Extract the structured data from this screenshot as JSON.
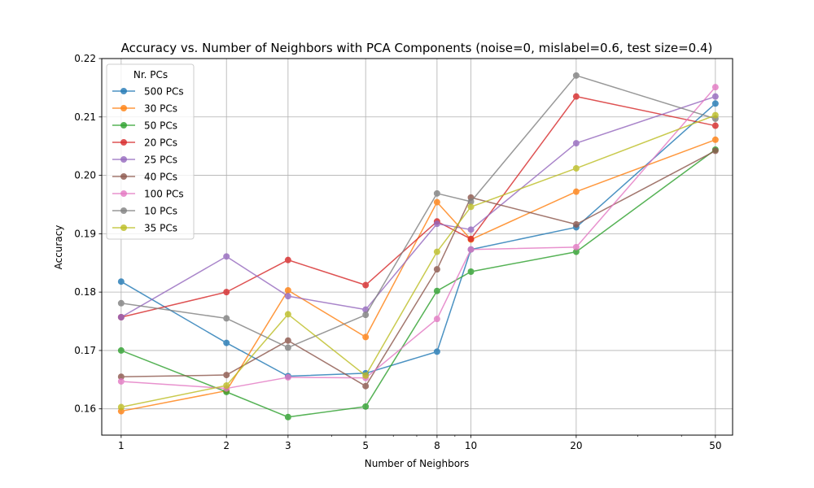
{
  "chart_data": {
    "type": "line",
    "title": "Accuracy vs. Number of Neighbors with PCA Components (noise=0, mislabel=0.6, test size=0.4)",
    "xlabel": "Number of Neighbors",
    "ylabel": "Accuracy",
    "x_scale": "log",
    "x": [
      1,
      2,
      3,
      5,
      8,
      10,
      20,
      50
    ],
    "x_tick_labels": [
      "1",
      "2",
      "3",
      "5",
      "8",
      "10",
      "20",
      "50"
    ],
    "xlim": [
      0.88,
      56
    ],
    "y_ticks": [
      0.16,
      0.17,
      0.18,
      0.19,
      0.2,
      0.21,
      0.22
    ],
    "y_tick_labels": [
      "0.16",
      "0.17",
      "0.18",
      "0.19",
      "0.20",
      "0.21",
      "0.22"
    ],
    "ylim": [
      0.1555,
      0.22
    ],
    "grid": true,
    "legend": {
      "title": "Nr. PCs",
      "placement": "upper-left"
    },
    "series": [
      {
        "name": "500 PCs",
        "color": "#1f77b4",
        "values": [
          0.1818,
          0.1713,
          0.1656,
          0.1661,
          0.1698,
          0.1873,
          0.1911,
          0.2123
        ]
      },
      {
        "name": "30 PCs",
        "color": "#ff7f0e",
        "values": [
          0.1596,
          0.1631,
          0.1803,
          0.1723,
          0.1954,
          0.189,
          0.1972,
          0.2061
        ]
      },
      {
        "name": "50 PCs",
        "color": "#2ca02c",
        "values": [
          0.17,
          0.1629,
          0.1586,
          0.1604,
          0.1802,
          0.1835,
          0.1869,
          0.2044
        ]
      },
      {
        "name": "20 PCs",
        "color": "#d62728",
        "values": [
          0.1757,
          0.18,
          0.1855,
          0.1812,
          0.1921,
          0.1891,
          0.2135,
          0.2085
        ]
      },
      {
        "name": "25 PCs",
        "color": "#9467bd",
        "values": [
          0.1757,
          0.1861,
          0.1793,
          0.177,
          0.1917,
          0.1907,
          0.2055,
          0.2135
        ]
      },
      {
        "name": "40 PCs",
        "color": "#8c564b",
        "values": [
          0.1655,
          0.1658,
          0.1717,
          0.1639,
          0.1839,
          0.1962,
          0.1916,
          0.2042
        ]
      },
      {
        "name": "100 PCs",
        "color": "#e377c2",
        "values": [
          0.1647,
          0.1635,
          0.1654,
          0.1653,
          0.1754,
          0.1873,
          0.1877,
          0.2151
        ]
      },
      {
        "name": "10 PCs",
        "color": "#7f7f7f",
        "values": [
          0.1781,
          0.1755,
          0.1705,
          0.1761,
          0.1969,
          0.1955,
          0.2171,
          0.2097
        ]
      },
      {
        "name": "35 PCs",
        "color": "#bcbd22",
        "values": [
          0.1603,
          0.164,
          0.1762,
          0.1657,
          0.1869,
          0.1946,
          0.2012,
          0.2103
        ]
      }
    ]
  }
}
